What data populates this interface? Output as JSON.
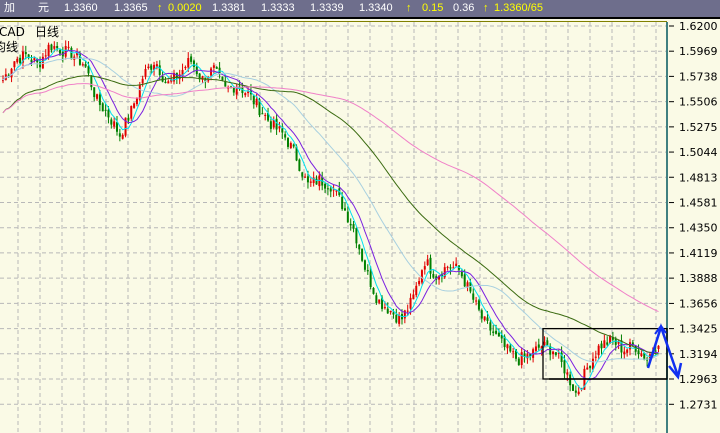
{
  "header": {
    "label_1": "加",
    "label_2": "元",
    "open": "1.3360",
    "prev": "1.3365",
    "change": "0.0020",
    "high": "1.3381",
    "low": "1.3333",
    "close": "1.3339",
    "last": "1.3340",
    "pct": "0.15",
    "range": "0.36",
    "bidask": "1.3360/65",
    "up_arrow": "↑"
  },
  "chart_labels": {
    "symbol": "CAD",
    "period": "日线",
    "indicator": "均线"
  },
  "chart_data": {
    "type": "candlestick",
    "title": "",
    "yticks": [
      "1.6200",
      "1.5969",
      "1.5738",
      "1.5506",
      "1.5275",
      "1.5044",
      "1.4813",
      "1.4581",
      "1.4350",
      "1.4119",
      "1.3888",
      "1.3656",
      "1.3425",
      "1.3194",
      "1.2963",
      "1.2731"
    ],
    "ylim": [
      1.262,
      1.625
    ],
    "grid": true,
    "approx_close_path": [
      1.5705,
      1.5888,
      1.5934,
      1.5842,
      1.6026,
      1.598,
      1.5934,
      1.5842,
      1.5521,
      1.5384,
      1.52,
      1.543,
      1.575,
      1.589,
      1.566,
      1.575,
      1.589,
      1.5705,
      1.58,
      1.5613,
      1.566,
      1.557,
      1.543,
      1.529,
      1.52,
      1.5017,
      1.474,
      1.479,
      1.474,
      1.456,
      1.433,
      1.396,
      1.369,
      1.36,
      1.35,
      1.369,
      1.4054,
      1.391,
      1.4,
      1.396,
      1.373,
      1.35,
      1.337,
      1.323,
      1.314,
      1.318,
      1.327,
      1.323,
      1.305,
      1.282,
      1.309,
      1.327,
      1.332,
      1.323,
      1.327,
      1.314,
      1.332
    ],
    "moving_averages": [
      {
        "period": 5,
        "color": "#00e0f0"
      },
      {
        "period": 10,
        "color": "#7a20e0"
      },
      {
        "period": 30,
        "color": "#a8d0e0"
      },
      {
        "period": 60,
        "color": "#3a6a10"
      },
      {
        "period": 120,
        "color": "#f080c8"
      }
    ],
    "annotations": {
      "box_top": 1.3425,
      "box_bottom": 1.2963,
      "arrow_color": "#1030f0"
    },
    "colors": {
      "up": "#e00000",
      "down": "#008000",
      "background": "#fafae6",
      "grid": "#b8b8b8"
    }
  }
}
